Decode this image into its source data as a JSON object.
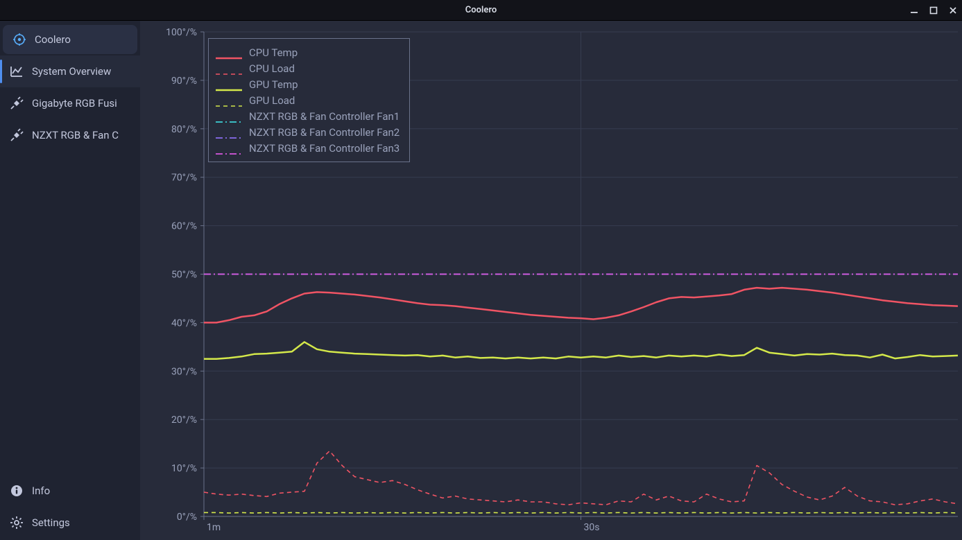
{
  "window": {
    "title": "Coolero"
  },
  "sidebar": {
    "items": [
      {
        "label": "Coolero",
        "icon": "coolero-icon",
        "type": "coolero"
      },
      {
        "label": "System Overview",
        "icon": "chart-line-icon",
        "type": "active"
      },
      {
        "label": "Gigabyte RGB Fusi",
        "icon": "plug-icon",
        "type": ""
      },
      {
        "label": "NZXT RGB & Fan C",
        "icon": "plug-icon",
        "type": ""
      }
    ],
    "bottom": [
      {
        "label": "Info",
        "icon": "info-icon"
      },
      {
        "label": "Settings",
        "icon": "gear-icon"
      }
    ]
  },
  "chart": {
    "plot_bg": "#272b3a",
    "grid_color": "#373c50",
    "axis_color": "#6a728b",
    "text_color": "#9aa2bb",
    "ylim": [
      0,
      100
    ],
    "xlim": [
      0,
      60
    ],
    "yticks": [
      0,
      10,
      20,
      30,
      40,
      50,
      60,
      70,
      80,
      90,
      100
    ],
    "ytick_labels": [
      "0°/%",
      "10°/%",
      "20°/%",
      "30°/%",
      "40°/%",
      "50°/%",
      "60°/%",
      "70°/%",
      "80°/%",
      "90°/%",
      "100°/%"
    ],
    "xticks": [
      0,
      30
    ],
    "xtick_labels": [
      "1m",
      "30s"
    ],
    "series": [
      {
        "name": "CPU Temp",
        "color": "#f05464",
        "dash": "",
        "width": 2.5,
        "values": [
          40,
          40,
          40.5,
          41.2,
          41.5,
          42.3,
          43.8,
          45,
          46,
          46.3,
          46.2,
          46,
          45.8,
          45.5,
          45.2,
          44.8,
          44.4,
          44,
          43.7,
          43.6,
          43.4,
          43.1,
          42.8,
          42.5,
          42.2,
          41.9,
          41.6,
          41.4,
          41.2,
          41,
          40.9,
          40.7,
          41,
          41.5,
          42.3,
          43.2,
          44.2,
          45,
          45.3,
          45.2,
          45.4,
          45.6,
          45.9,
          46.8,
          47.2,
          47,
          47.2,
          47,
          46.8,
          46.5,
          46.2,
          45.8,
          45.4,
          45,
          44.6,
          44.3,
          44,
          43.8,
          43.6,
          43.5,
          43.4
        ]
      },
      {
        "name": "CPU Load",
        "color": "#f05464",
        "dash": "6 5",
        "width": 1.6,
        "values": [
          5,
          4.6,
          4.4,
          4.6,
          4.3,
          4.1,
          4.8,
          5,
          5.2,
          11,
          13.5,
          10.5,
          8.2,
          7.6,
          7,
          7.4,
          6.6,
          5.5,
          4.6,
          3.8,
          4.2,
          3.6,
          3.4,
          3.2,
          3,
          3.4,
          3,
          3,
          2.6,
          2.4,
          2.8,
          2.6,
          2.4,
          3.2,
          3,
          4.6,
          3.4,
          4.2,
          3.2,
          3,
          4.6,
          3.6,
          3,
          3.2,
          10.5,
          9,
          6.6,
          5.2,
          4,
          3.4,
          4.2,
          6,
          4.2,
          3.2,
          3,
          2.4,
          2.6,
          3.2,
          3.6,
          3,
          2.6
        ]
      },
      {
        "name": "GPU Temp",
        "color": "#d4e84a",
        "dash": "",
        "width": 2.5,
        "values": [
          32.5,
          32.5,
          32.7,
          33,
          33.5,
          33.6,
          33.8,
          34,
          36,
          34.5,
          34,
          33.8,
          33.6,
          33.5,
          33.4,
          33.3,
          33.2,
          33.3,
          33,
          33.2,
          32.8,
          33,
          32.7,
          32.8,
          32.6,
          32.8,
          32.6,
          32.8,
          32.6,
          33,
          32.8,
          33,
          32.8,
          33.2,
          32.9,
          33.1,
          32.8,
          33.2,
          33,
          33.2,
          33,
          33.4,
          33.1,
          33.3,
          34.8,
          33.8,
          33.5,
          33.2,
          33.5,
          33.4,
          33.6,
          33.3,
          33.2,
          32.8,
          33.4,
          32.6,
          32.9,
          33.3,
          33,
          33.1,
          33.2
        ]
      },
      {
        "name": "GPU Load",
        "color": "#d4e84a",
        "dash": "6 5",
        "width": 1.6,
        "values": [
          0.8,
          0.8,
          0.7,
          0.8,
          0.7,
          0.8,
          0.7,
          0.8,
          0.7,
          0.8,
          0.7,
          0.8,
          0.7,
          0.8,
          0.7,
          0.8,
          0.7,
          0.8,
          0.7,
          0.8,
          0.7,
          0.8,
          0.7,
          0.8,
          0.7,
          0.8,
          0.7,
          0.8,
          0.7,
          0.8,
          0.7,
          0.8,
          0.7,
          0.8,
          0.7,
          0.8,
          0.7,
          0.8,
          0.7,
          0.8,
          0.7,
          0.8,
          0.7,
          0.8,
          0.7,
          0.8,
          0.7,
          0.8,
          0.7,
          0.8,
          0.7,
          0.8,
          0.7,
          0.8,
          0.7,
          0.8,
          0.7,
          0.8,
          0.7,
          0.8,
          0.7
        ]
      },
      {
        "name": "NZXT RGB & Fan Controller Fan1",
        "color": "#3dd0d6",
        "dash": "10 4 2 4",
        "width": 1.8,
        "values": [
          50,
          50,
          50,
          50,
          50,
          50,
          50,
          50,
          50,
          50,
          50,
          50,
          50,
          50,
          50,
          50,
          50,
          50,
          50,
          50,
          50,
          50,
          50,
          50,
          50,
          50,
          50,
          50,
          50,
          50,
          50,
          50,
          50,
          50,
          50,
          50,
          50,
          50,
          50,
          50,
          50,
          50,
          50,
          50,
          50,
          50,
          50,
          50,
          50,
          50,
          50,
          50,
          50,
          50,
          50,
          50,
          50,
          50,
          50,
          50,
          50
        ]
      },
      {
        "name": "NZXT RGB & Fan Controller Fan2",
        "color": "#8a6ef0",
        "dash": "10 4 2 4",
        "width": 1.8,
        "values": [
          50,
          50,
          50,
          50,
          50,
          50,
          50,
          50,
          50,
          50,
          50,
          50,
          50,
          50,
          50,
          50,
          50,
          50,
          50,
          50,
          50,
          50,
          50,
          50,
          50,
          50,
          50,
          50,
          50,
          50,
          50,
          50,
          50,
          50,
          50,
          50,
          50,
          50,
          50,
          50,
          50,
          50,
          50,
          50,
          50,
          50,
          50,
          50,
          50,
          50,
          50,
          50,
          50,
          50,
          50,
          50,
          50,
          50,
          50,
          50,
          50
        ]
      },
      {
        "name": "NZXT RGB & Fan Controller Fan3",
        "color": "#d858e0",
        "dash": "10 4 2 4",
        "width": 1.8,
        "values": [
          50,
          50,
          50,
          50,
          50,
          50,
          50,
          50,
          50,
          50,
          50,
          50,
          50,
          50,
          50,
          50,
          50,
          50,
          50,
          50,
          50,
          50,
          50,
          50,
          50,
          50,
          50,
          50,
          50,
          50,
          50,
          50,
          50,
          50,
          50,
          50,
          50,
          50,
          50,
          50,
          50,
          50,
          50,
          50,
          50,
          50,
          50,
          50,
          50,
          50,
          50,
          50,
          50,
          50,
          50,
          50,
          50,
          50,
          50,
          50,
          50
        ]
      }
    ]
  }
}
